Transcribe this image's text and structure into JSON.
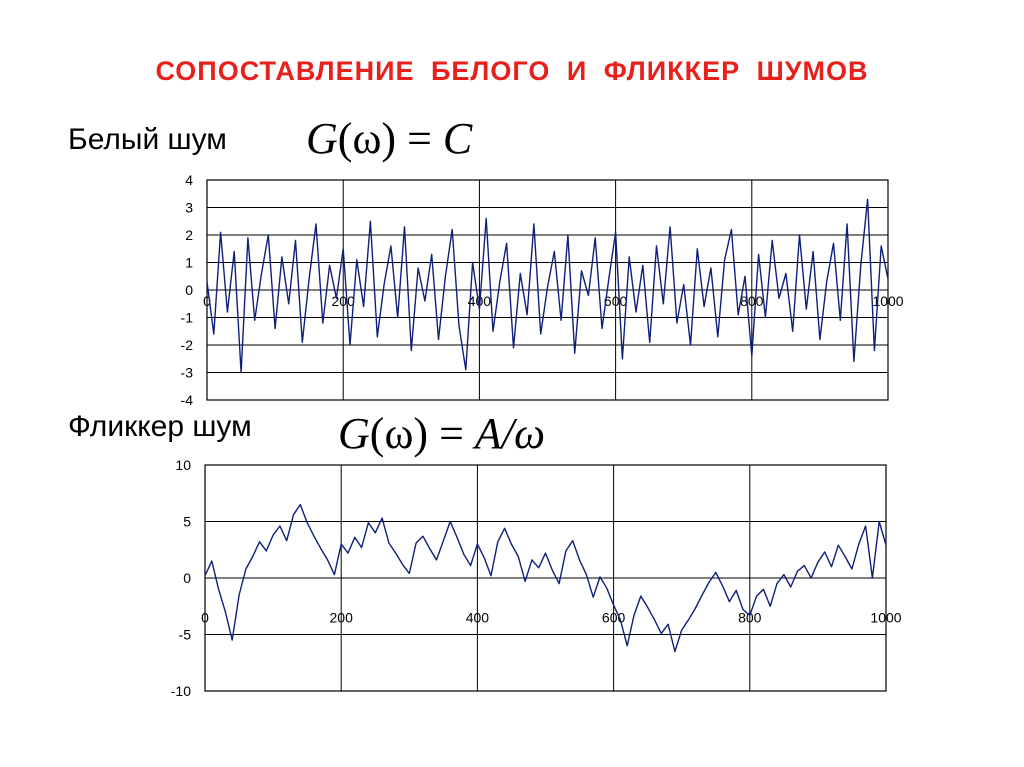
{
  "title": "СОПОСТАВЛЕНИЕ  БЕЛОГО  И  ФЛИККЕР  ШУМОВ",
  "colors": {
    "title": "#e8201c",
    "series": "#0f1f7a",
    "grid": "#000000"
  },
  "sections": [
    {
      "label": "Белый шум",
      "formula": {
        "lhs": "G",
        "arg": "ω",
        "rhs": "C"
      }
    },
    {
      "label": "Фликкер шум",
      "formula": {
        "lhs": "G",
        "arg": "ω",
        "rhs": "A/ω"
      }
    }
  ],
  "chart_data": [
    {
      "type": "line",
      "xlim": [
        0,
        1000
      ],
      "ylim": [
        -4,
        4
      ],
      "x_ticks": [
        "0",
        "200",
        "400",
        "600",
        "800",
        "1000"
      ],
      "y_ticks": [
        "4",
        "3",
        "2",
        "1",
        "0",
        "-1",
        "-2",
        "-3",
        "-4"
      ],
      "grid": true,
      "x_tick_labels_at_y": 0,
      "series": [
        {
          "x": [
            0,
            10,
            20,
            30,
            40,
            50,
            60,
            70,
            80,
            90,
            100,
            110,
            120,
            130,
            140,
            150,
            160,
            170,
            180,
            190,
            200,
            210,
            220,
            230,
            240,
            250,
            260,
            270,
            280,
            290,
            300,
            310,
            320,
            330,
            340,
            350,
            360,
            370,
            380,
            390,
            400,
            410,
            420,
            430,
            440,
            450,
            460,
            470,
            480,
            490,
            500,
            510,
            520,
            530,
            540,
            550,
            560,
            570,
            580,
            590,
            600,
            610,
            620,
            630,
            640,
            650,
            660,
            670,
            680,
            690,
            700,
            710,
            720,
            730,
            740,
            750,
            760,
            770,
            780,
            790,
            800,
            810,
            820,
            830,
            840,
            850,
            860,
            870,
            880,
            890,
            900,
            910,
            920,
            930,
            940,
            950,
            960,
            970,
            980,
            990,
            1000
          ],
          "y": [
            0.3,
            -1.6,
            2.1,
            -0.8,
            1.4,
            -3.0,
            1.9,
            -1.1,
            0.6,
            2.0,
            -1.4,
            1.2,
            -0.5,
            1.8,
            -1.9,
            0.4,
            2.4,
            -1.2,
            0.9,
            -0.3,
            1.5,
            -2.0,
            1.1,
            -0.6,
            2.5,
            -1.7,
            0.2,
            1.6,
            -1.0,
            2.3,
            -2.2,
            0.8,
            -0.4,
            1.3,
            -1.8,
            0.5,
            2.2,
            -1.3,
            -2.9,
            1.0,
            -0.7,
            2.6,
            -1.5,
            0.3,
            1.7,
            -2.1,
            0.6,
            -0.9,
            2.4,
            -1.6,
            0.1,
            1.4,
            -1.1,
            2.0,
            -2.3,
            0.7,
            -0.2,
            1.9,
            -1.4,
            0.4,
            2.1,
            -2.5,
            1.2,
            -0.8,
            0.9,
            -1.9,
            1.6,
            -0.5,
            2.3,
            -1.2,
            0.2,
            -2.0,
            1.5,
            -0.6,
            0.8,
            -1.7,
            1.1,
            2.2,
            -0.9,
            0.5,
            -2.4,
            1.3,
            -1.0,
            1.8,
            -0.3,
            0.6,
            -1.5,
            2.0,
            -0.7,
            1.4,
            -1.8,
            0.3,
            1.7,
            -1.1,
            2.4,
            -2.6,
            0.9,
            3.3,
            -2.2,
            1.6,
            0.4
          ]
        }
      ]
    },
    {
      "type": "line",
      "xlim": [
        0,
        1000
      ],
      "ylim": [
        -10,
        10
      ],
      "x_ticks": [
        "0",
        "200",
        "400",
        "600",
        "800",
        "1000"
      ],
      "y_ticks": [
        "10",
        "5",
        "0",
        "-5",
        "-10"
      ],
      "grid": true,
      "x_tick_labels_at_y": -2.5,
      "series": [
        {
          "x": [
            0,
            10,
            20,
            30,
            40,
            50,
            60,
            70,
            80,
            90,
            100,
            110,
            120,
            130,
            140,
            150,
            160,
            170,
            180,
            190,
            200,
            210,
            220,
            230,
            240,
            250,
            260,
            270,
            280,
            290,
            300,
            310,
            320,
            330,
            340,
            350,
            360,
            370,
            380,
            390,
            400,
            410,
            420,
            430,
            440,
            450,
            460,
            470,
            480,
            490,
            500,
            510,
            520,
            530,
            540,
            550,
            560,
            570,
            580,
            590,
            600,
            610,
            620,
            630,
            640,
            650,
            660,
            670,
            680,
            690,
            700,
            710,
            720,
            730,
            740,
            750,
            760,
            770,
            780,
            790,
            800,
            810,
            820,
            830,
            840,
            850,
            860,
            870,
            880,
            890,
            900,
            910,
            920,
            930,
            940,
            950,
            960,
            970,
            980,
            990,
            1000
          ],
          "y": [
            0.2,
            1.5,
            -1.0,
            -3.0,
            -5.5,
            -1.5,
            0.8,
            1.9,
            3.2,
            2.4,
            3.8,
            4.6,
            3.3,
            5.6,
            6.5,
            4.9,
            3.7,
            2.6,
            1.6,
            0.3,
            3.0,
            2.2,
            3.6,
            2.7,
            4.9,
            4.0,
            5.3,
            3.1,
            2.2,
            1.2,
            0.4,
            3.1,
            3.7,
            2.6,
            1.6,
            3.3,
            5.0,
            3.6,
            2.1,
            1.1,
            3.0,
            1.8,
            0.2,
            3.2,
            4.4,
            3.0,
            1.9,
            -0.3,
            1.6,
            0.9,
            2.2,
            0.7,
            -0.5,
            2.4,
            3.3,
            1.6,
            0.3,
            -1.7,
            0.1,
            -0.9,
            -2.4,
            -3.7,
            -6.0,
            -3.3,
            -1.6,
            -2.6,
            -3.7,
            -4.9,
            -4.1,
            -6.5,
            -4.6,
            -3.7,
            -2.7,
            -1.5,
            -0.4,
            0.5,
            -0.7,
            -2.1,
            -1.1,
            -2.8,
            -3.3,
            -1.6,
            -1.0,
            -2.5,
            -0.5,
            0.3,
            -0.8,
            0.6,
            1.1,
            0.0,
            1.4,
            2.3,
            1.0,
            2.9,
            1.9,
            0.8,
            3.0,
            4.6,
            0.0,
            5.0,
            2.9
          ]
        }
      ]
    }
  ]
}
